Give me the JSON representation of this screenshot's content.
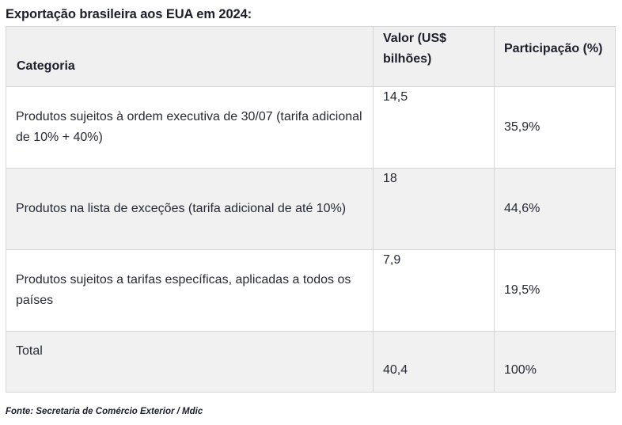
{
  "table": {
    "caption": "Exportação brasileira aos EUA em 2024:",
    "headers": {
      "category": "Categoria",
      "value": "Valor (US$ bilhões)",
      "share": "Participação (%)"
    },
    "rows": [
      {
        "category": "Produtos sujeitos à ordem executiva de 30/07 (tarifa adicional de 10% + 40%)",
        "value": "14,5",
        "share": "35,9%"
      },
      {
        "category": "Produtos na lista de exceções (tarifa adicional de até 10%)",
        "value": "18",
        "share": "44,6%"
      },
      {
        "category": "Produtos sujeitos a tarifas específicas, aplicadas a todos os países",
        "value": "7,9",
        "share": "19,5%"
      },
      {
        "category": "Total",
        "value": "40,4",
        "share": "100%"
      }
    ],
    "source": "Fonte: Secretaria de Comércio Exterior / Mdic"
  }
}
